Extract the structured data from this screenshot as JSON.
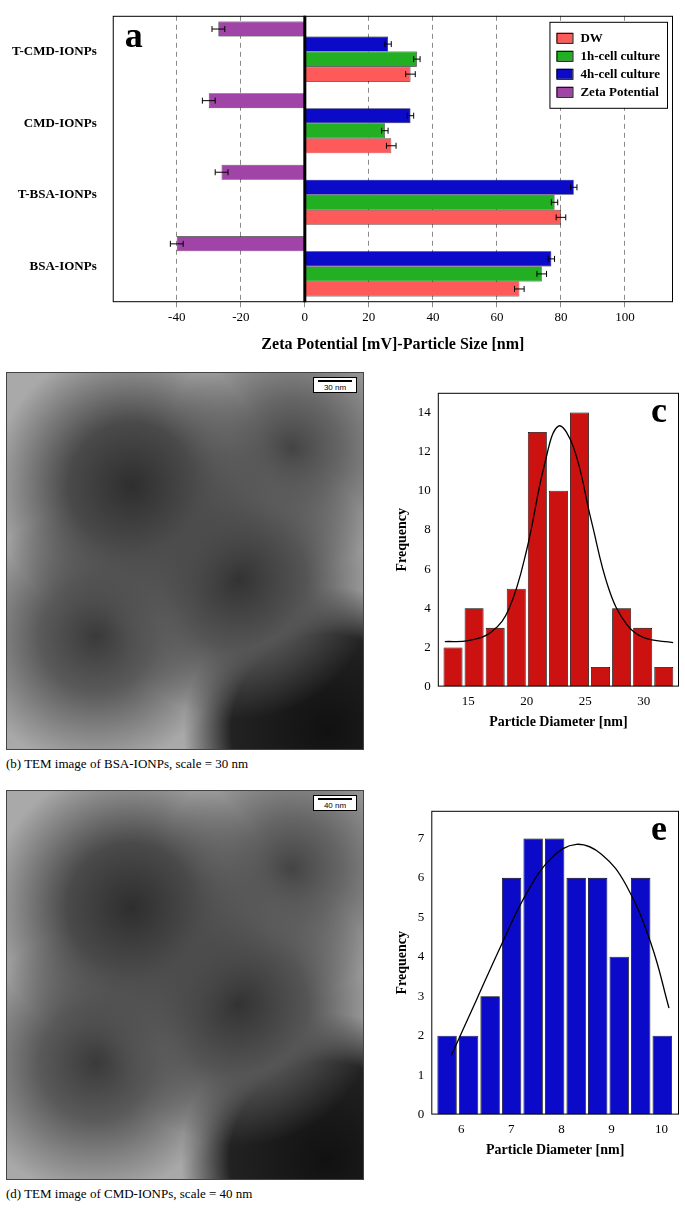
{
  "chart_data": [
    {
      "panel": "a",
      "type": "bar",
      "orientation": "horizontal",
      "categories": [
        "T-CMD-IONPs",
        "CMD-IONPs",
        "T-BSA-IONPs",
        "BSA-IONPs"
      ],
      "series": [
        {
          "name": "DW",
          "color": "#ff5a5a",
          "values": [
            33,
            27,
            80,
            67
          ],
          "errors": [
            1.5,
            1.5,
            1.5,
            1.5
          ]
        },
        {
          "name": "1h-cell culture",
          "color": "#22b022",
          "values": [
            35,
            25,
            78,
            74
          ],
          "errors": [
            1,
            1,
            1,
            1.5
          ]
        },
        {
          "name": "4h-cell culture",
          "color": "#0a0ac8",
          "values": [
            26,
            33,
            84,
            77
          ],
          "errors": [
            1,
            1,
            1,
            1
          ]
        },
        {
          "name": "Zeta Potential",
          "color": "#a044a8",
          "values": [
            -27,
            -30,
            -26,
            -40
          ],
          "errors": [
            2,
            2,
            2,
            2
          ]
        }
      ],
      "x_label": "Zeta Potential [mV]-Particle Size [nm]",
      "xlim": [
        -60,
        115
      ],
      "xticks": [
        -40,
        -20,
        0,
        20,
        40,
        60,
        80,
        100
      ],
      "grid": true,
      "legend": "upper right"
    },
    {
      "panel": "c",
      "type": "histogram",
      "bins": [
        12.8,
        14.6,
        16.4,
        18.2,
        20,
        21.8,
        23.6,
        25.4,
        27.2,
        29,
        30.8,
        32.6
      ],
      "counts": [
        2,
        4,
        3,
        5,
        13,
        10,
        14,
        1,
        4,
        3,
        1
      ],
      "color": "#cc1111",
      "fit": {
        "x": [
          13,
          15,
          17,
          18.5,
          20,
          21.5,
          22.7,
          24,
          25.5,
          27,
          28.5,
          30,
          32.5
        ],
        "values": [
          2.3,
          2.35,
          2.8,
          4,
          7,
          11.3,
          13.3,
          12.2,
          8.5,
          5,
          3.2,
          2.5,
          2.25
        ],
        "color": "#000000"
      },
      "x_label": "Particle Diameter [nm]",
      "y_label": "Frequency",
      "xlim": [
        12.4,
        33
      ],
      "xticks": [
        15,
        20,
        25,
        30
      ],
      "ylim": [
        0,
        15
      ],
      "yticks": [
        0,
        2,
        4,
        6,
        8,
        10,
        12,
        14
      ],
      "grid": false
    },
    {
      "panel": "e",
      "type": "histogram",
      "bins": [
        5.5,
        5.93,
        6.36,
        6.79,
        7.22,
        7.65,
        8.08,
        8.51,
        8.94,
        9.37,
        9.8,
        10.23
      ],
      "counts": [
        2,
        2,
        3,
        6,
        7,
        7,
        6,
        6,
        4,
        6,
        2
      ],
      "color": "#0a0ac8",
      "fit": {
        "x": [
          5.8,
          6.3,
          6.8,
          7.3,
          7.8,
          8.3,
          8.8,
          9.3,
          9.8,
          10.15
        ],
        "values": [
          1.5,
          2.9,
          4.3,
          5.6,
          6.5,
          6.85,
          6.6,
          5.8,
          4.3,
          2.7
        ],
        "color": "#000000"
      },
      "x_label": "Particle Diameter [nm]",
      "y_label": "Frequency",
      "xlim": [
        5.4,
        10.35
      ],
      "xticks": [
        6,
        7,
        8,
        9,
        10
      ],
      "ylim": [
        0,
        7.7
      ],
      "yticks": [
        0,
        1,
        2,
        3,
        4,
        5,
        6,
        7
      ],
      "grid": false
    }
  ],
  "images": [
    {
      "panel": "b",
      "caption": "(b) TEM image of BSA-IONPs, scale = 30 nm",
      "scale_bar": "30 nm"
    },
    {
      "panel": "d",
      "caption": "(d) TEM image of CMD-IONPs, scale = 40 nm",
      "scale_bar": "40 nm"
    }
  ]
}
